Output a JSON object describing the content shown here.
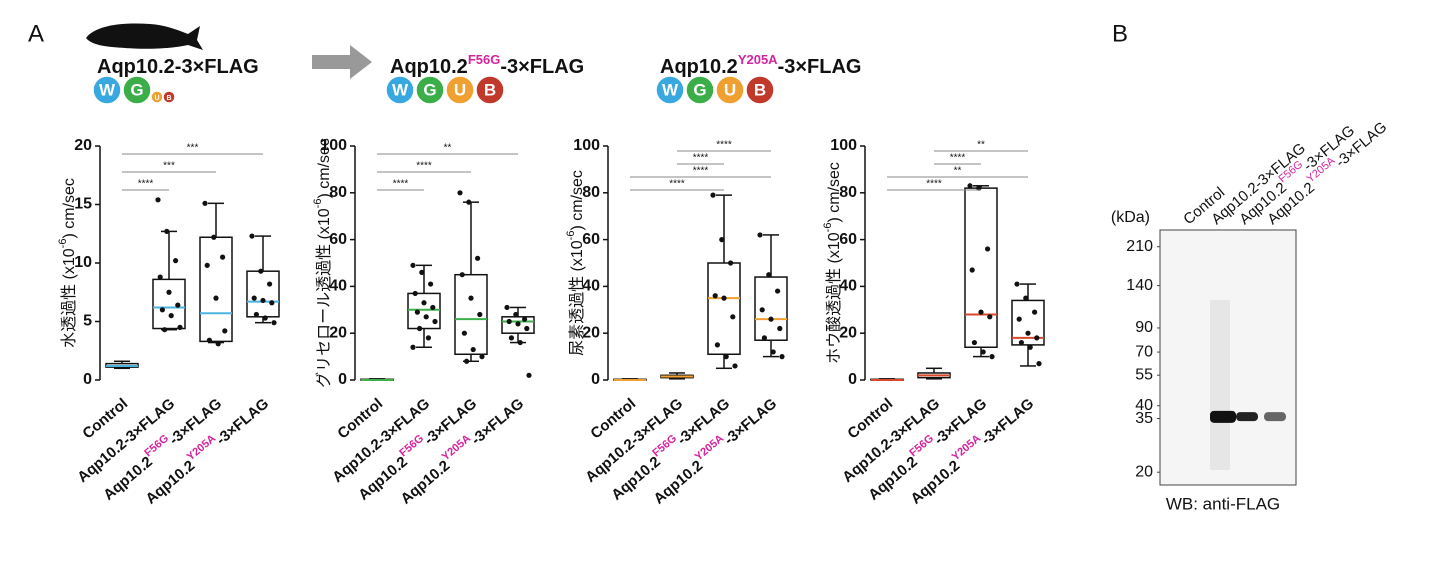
{
  "panels": {
    "a": "A",
    "b": "B"
  },
  "badges": [
    "W",
    "G",
    "U",
    "B"
  ],
  "constructs": [
    {
      "parts": [
        "Aqp10.2-3×FLAG"
      ]
    },
    {
      "parts": [
        "Aqp10.2",
        "F56G",
        "-3×FLAG"
      ]
    },
    {
      "parts": [
        "Aqp10.2",
        "Y205A",
        "-3×FLAG"
      ]
    }
  ],
  "chart_data": [
    {
      "type": "box",
      "ylabel": [
        "水透過性 (x10",
        "-6",
        ") cm/sec"
      ],
      "ylim": [
        0,
        20
      ],
      "yticks": [
        0,
        5,
        10,
        15,
        20
      ],
      "median_color": "#4bb3e0",
      "categories": [
        [
          "Control"
        ],
        [
          "Aqp10.2-3×FLAG"
        ],
        [
          "Aqp10.2",
          "F56G",
          "-3×FLAG"
        ],
        [
          "Aqp10.2",
          "Y205A",
          "-3×FLAG"
        ]
      ],
      "boxes": [
        {
          "min": 1.0,
          "q1": 1.1,
          "median": 1.2,
          "q3": 1.4,
          "max": 1.6
        },
        {
          "min": 4.3,
          "q1": 4.4,
          "median": 6.2,
          "q3": 8.6,
          "max": 12.7,
          "points": [
            15.4,
            12.7,
            10.2,
            8.8,
            7.5,
            6.4,
            6.0,
            5.5,
            4.5,
            4.3
          ]
        },
        {
          "min": 3.2,
          "q1": 3.3,
          "median": 5.7,
          "q3": 12.2,
          "max": 15.1,
          "points": [
            15.1,
            12.2,
            10.5,
            9.8,
            7.0,
            4.2,
            3.4,
            3.1
          ]
        },
        {
          "min": 4.9,
          "q1": 5.4,
          "median": 6.7,
          "q3": 9.3,
          "max": 12.3,
          "points": [
            12.3,
            9.3,
            8.2,
            7.0,
            6.8,
            6.6,
            5.6,
            5.3,
            4.9
          ]
        }
      ],
      "significance": [
        {
          "from": 0,
          "to": 1,
          "label": "****"
        },
        {
          "from": 0,
          "to": 2,
          "label": "***"
        },
        {
          "from": 0,
          "to": 3,
          "label": "***"
        }
      ]
    },
    {
      "type": "box",
      "ylabel": [
        "グリセロール透過性 (x10",
        "-6",
        ") cm/sec"
      ],
      "ylim": [
        0,
        100
      ],
      "yticks": [
        0,
        20,
        40,
        60,
        80,
        100
      ],
      "median_color": "#3cb04a",
      "categories": [
        [
          "Control"
        ],
        [
          "Aqp10.2-3×FLAG"
        ],
        [
          "Aqp10.2",
          "F56G",
          "-3×FLAG"
        ],
        [
          "Aqp10.2",
          "Y205A",
          "-3×FLAG"
        ]
      ],
      "boxes": [
        {
          "min": 0,
          "q1": 0,
          "median": 0,
          "q3": 0.3,
          "max": 0.5
        },
        {
          "min": 14,
          "q1": 22,
          "median": 30,
          "q3": 37,
          "max": 49,
          "points": [
            49,
            46,
            41,
            37,
            33,
            31,
            29,
            27,
            25,
            22,
            18,
            14
          ]
        },
        {
          "min": 8,
          "q1": 11,
          "median": 26,
          "q3": 45,
          "max": 76,
          "points": [
            80,
            76,
            52,
            45,
            35,
            28,
            20,
            13,
            10,
            8
          ]
        },
        {
          "min": 16,
          "q1": 20,
          "median": 25,
          "q3": 27,
          "max": 31,
          "points": [
            31,
            28,
            26,
            25,
            24,
            22,
            18,
            16,
            2
          ]
        }
      ],
      "significance": [
        {
          "from": 0,
          "to": 1,
          "label": "****"
        },
        {
          "from": 0,
          "to": 2,
          "label": "****"
        },
        {
          "from": 0,
          "to": 3,
          "label": "**"
        }
      ]
    },
    {
      "type": "box",
      "ylabel": [
        "尿素透過性 (x10",
        "-6",
        ") cm/sec"
      ],
      "ylim": [
        0,
        100
      ],
      "yticks": [
        0,
        20,
        40,
        60,
        80,
        100
      ],
      "median_color": "#f0a030",
      "categories": [
        [
          "Control"
        ],
        [
          "Aqp10.2-3×FLAG"
        ],
        [
          "Aqp10.2",
          "F56G",
          "-3×FLAG"
        ],
        [
          "Aqp10.2",
          "Y205A",
          "-3×FLAG"
        ]
      ],
      "boxes": [
        {
          "min": 0,
          "q1": 0,
          "median": 0,
          "q3": 0.3,
          "max": 0.5
        },
        {
          "min": 0.5,
          "q1": 1,
          "median": 1.5,
          "q3": 2,
          "max": 3
        },
        {
          "min": 5,
          "q1": 11,
          "median": 35,
          "q3": 50,
          "max": 79,
          "points": [
            79,
            60,
            50,
            36,
            35,
            27,
            15,
            10,
            6
          ]
        },
        {
          "min": 10,
          "q1": 17,
          "median": 26,
          "q3": 44,
          "max": 62,
          "points": [
            62,
            45,
            38,
            30,
            26,
            22,
            18,
            12,
            10
          ]
        }
      ],
      "significance": [
        {
          "from": 0,
          "to": 2,
          "label": "****"
        },
        {
          "from": 0,
          "to": 3,
          "label": "****"
        },
        {
          "from": 1,
          "to": 2,
          "label": "****"
        },
        {
          "from": 1,
          "to": 3,
          "label": "****"
        }
      ]
    },
    {
      "type": "box",
      "ylabel": [
        "ホウ酸透過性 (x10",
        "-6",
        ") cm/sec"
      ],
      "ylim": [
        0,
        100
      ],
      "yticks": [
        0,
        20,
        40,
        60,
        80,
        100
      ],
      "median_color": "#d9482b",
      "categories": [
        [
          "Control"
        ],
        [
          "Aqp10.2-3×FLAG"
        ],
        [
          "Aqp10.2",
          "F56G",
          "-3×FLAG"
        ],
        [
          "Aqp10.2",
          "Y205A",
          "-3×FLAG"
        ]
      ],
      "boxes": [
        {
          "min": 0,
          "q1": 0,
          "median": 0,
          "q3": 0.3,
          "max": 0.5
        },
        {
          "min": 0.5,
          "q1": 1,
          "median": 2,
          "q3": 3,
          "max": 5
        },
        {
          "min": 10,
          "q1": 14,
          "median": 28,
          "q3": 82,
          "max": 83,
          "points": [
            83,
            82,
            56,
            47,
            29,
            27,
            16,
            12,
            10
          ]
        },
        {
          "min": 6,
          "q1": 15,
          "median": 18,
          "q3": 34,
          "max": 41,
          "points": [
            41,
            35,
            29,
            26,
            20,
            18,
            16,
            14,
            7
          ]
        }
      ],
      "significance": [
        {
          "from": 0,
          "to": 2,
          "label": "****"
        },
        {
          "from": 0,
          "to": 3,
          "label": "**"
        },
        {
          "from": 1,
          "to": 2,
          "label": "****"
        },
        {
          "from": 1,
          "to": 3,
          "label": "**"
        }
      ]
    },
    {
      "type": "blot",
      "ylabel": "(kDa)",
      "log": true,
      "ylim": [
        17.5,
        250
      ],
      "yticks": [
        210,
        140,
        90,
        70,
        55,
        40,
        35,
        20
      ],
      "categories": [
        [
          "Control"
        ],
        [
          "Aqp10.2-3×FLAG"
        ],
        [
          "Aqp10.2",
          "F56G",
          "-3×FLAG"
        ],
        [
          "Aqp10.2",
          "Y205A",
          "-3×FLAG"
        ]
      ],
      "values": [
        null,
        36,
        35.5,
        35.5
      ],
      "caption": "WB: anti-FLAG"
    }
  ]
}
